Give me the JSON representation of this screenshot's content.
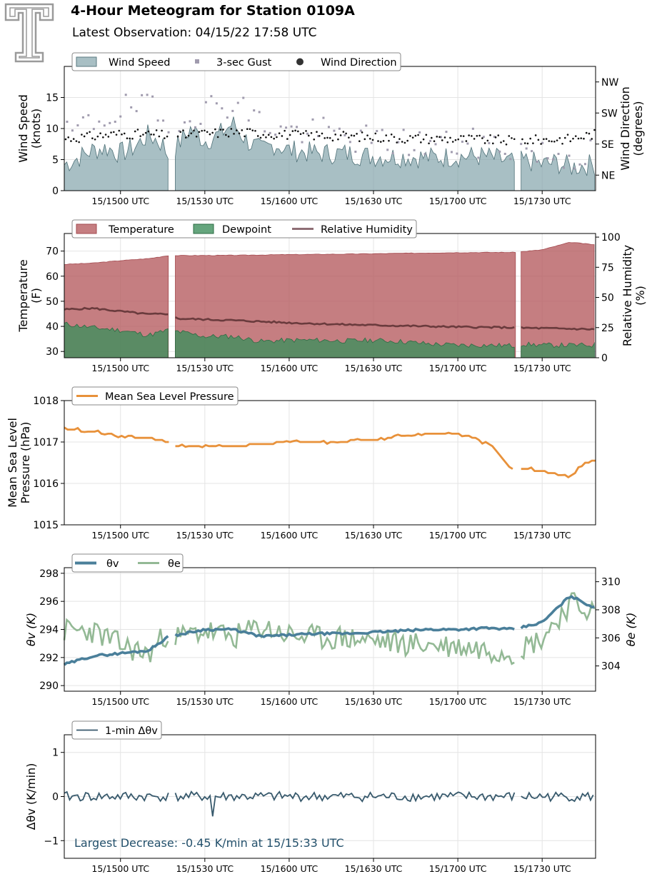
{
  "header": {
    "title": "4-Hour Meteogram for Station 0109A",
    "subtitle": "Latest Observation: 04/15/22 17:58 UTC"
  },
  "colors": {
    "wind_speed": "#7a9ca4",
    "gust": "#a09bae",
    "direction": "#111111",
    "temperature": "#b55a5e",
    "dewpoint": "#3e8e5c",
    "rh": "#6a3b3d",
    "pressure": "#e8913a",
    "theta_v": "#4a7f9a",
    "theta_e": "#93b995",
    "dtheta": "#37596c",
    "annotation": "#23506b"
  },
  "x_ticks": [
    "15/1500 UTC",
    "15/1530 UTC",
    "15/1600 UTC",
    "15/1630 UTC",
    "15/1700 UTC",
    "15/1730 UTC"
  ],
  "chart_data": [
    {
      "type": "area",
      "id": "wind",
      "legend": [
        "Wind Speed",
        "3-sec Gust",
        "Wind Direction"
      ],
      "ylabel": [
        "Wind Speed",
        "(knots)"
      ],
      "ylabel_right": [
        "Wind Direction",
        "(degrees)"
      ],
      "ylim": [
        0,
        20
      ],
      "yticks": [
        0,
        5,
        10,
        15
      ],
      "right_ticks": [
        "NE",
        "SE",
        "SW",
        "NW"
      ],
      "right_tick_values": [
        45,
        135,
        225,
        315
      ],
      "right_lim": [
        0,
        360
      ],
      "x_range_minutes": [
        -20,
        169
      ],
      "gaps": [
        [
          17.5,
          19.5
        ],
        [
          140.5,
          142.5
        ]
      ],
      "wind_speed_anchors": [
        [
          -20,
          4.2
        ],
        [
          -15,
          5.3
        ],
        [
          -10,
          6.5
        ],
        [
          -5,
          6.9
        ],
        [
          0,
          6.0
        ],
        [
          5,
          7.0
        ],
        [
          10,
          9.0
        ],
        [
          15,
          7.5
        ],
        [
          17,
          5.6
        ],
        [
          20,
          7.2
        ],
        [
          25,
          10.0
        ],
        [
          30,
          8.0
        ],
        [
          35,
          9.0
        ],
        [
          40,
          10.8
        ],
        [
          45,
          8.0
        ],
        [
          50,
          6.5
        ],
        [
          55,
          7.5
        ],
        [
          60,
          6.5
        ],
        [
          70,
          6.0
        ],
        [
          80,
          6.0
        ],
        [
          90,
          5.5
        ],
        [
          100,
          5.5
        ],
        [
          110,
          5.3
        ],
        [
          120,
          5.5
        ],
        [
          130,
          5.5
        ],
        [
          140,
          4.5
        ],
        [
          145,
          4.8
        ],
        [
          150,
          4.2
        ],
        [
          155,
          4.5
        ],
        [
          160,
          3.8
        ],
        [
          169,
          4.3
        ]
      ],
      "gust_anchors": [
        [
          -20,
          8.5
        ],
        [
          -10,
          11
        ],
        [
          0,
          13
        ],
        [
          10,
          13.5
        ],
        [
          17,
          9.5
        ],
        [
          20,
          12
        ],
        [
          30,
          13
        ],
        [
          40,
          14.5
        ],
        [
          50,
          11
        ],
        [
          60,
          9.5
        ],
        [
          70,
          9.5
        ],
        [
          90,
          8
        ],
        [
          110,
          7.5
        ],
        [
          120,
          7.5
        ],
        [
          130,
          7.5
        ],
        [
          140,
          7
        ],
        [
          150,
          6
        ],
        [
          160,
          5.5
        ],
        [
          169,
          6.5
        ]
      ],
      "direction_anchors": [
        [
          -20,
          150
        ],
        [
          0,
          165
        ],
        [
          20,
          160
        ],
        [
          40,
          170
        ],
        [
          60,
          162
        ],
        [
          80,
          158
        ],
        [
          100,
          152
        ],
        [
          120,
          150
        ],
        [
          140,
          145
        ],
        [
          160,
          150
        ],
        [
          169,
          165
        ]
      ]
    },
    {
      "type": "area",
      "id": "temp",
      "legend": [
        "Temperature",
        "Dewpoint",
        "Relative Humidity"
      ],
      "ylabel": [
        "Temperature",
        "(F)"
      ],
      "ylabel_right": [
        "Relative Humidity",
        "(%)"
      ],
      "ylim": [
        27.5,
        77
      ],
      "yticks": [
        30,
        40,
        50,
        60,
        70
      ],
      "right_ticks": [
        "0",
        "25",
        "50",
        "75",
        "100"
      ],
      "right_tick_values": [
        0,
        25,
        50,
        75,
        100
      ],
      "right_lim": [
        0,
        103
      ],
      "gaps": [
        [
          17.5,
          19.5
        ],
        [
          140.5,
          142.5
        ]
      ],
      "temperature_anchors": [
        [
          -20,
          64.7
        ],
        [
          -10,
          65.2
        ],
        [
          0,
          66.2
        ],
        [
          10,
          67.0
        ],
        [
          17,
          68.2
        ],
        [
          20,
          68.2
        ],
        [
          40,
          68.3
        ],
        [
          60,
          68.6
        ],
        [
          80,
          68.8
        ],
        [
          100,
          69.1
        ],
        [
          120,
          69.4
        ],
        [
          140,
          69.5
        ],
        [
          142,
          69.7
        ],
        [
          150,
          70.5
        ],
        [
          160,
          73.5
        ],
        [
          169,
          72.5
        ]
      ],
      "dewpoint_anchors": [
        [
          -20,
          41
        ],
        [
          -10,
          39.5
        ],
        [
          0,
          38.5
        ],
        [
          10,
          36.5
        ],
        [
          17,
          38.5
        ],
        [
          20,
          38
        ],
        [
          30,
          36
        ],
        [
          40,
          36
        ],
        [
          50,
          34
        ],
        [
          60,
          34.5
        ],
        [
          70,
          34.5
        ],
        [
          80,
          34.2
        ],
        [
          90,
          34.5
        ],
        [
          100,
          34
        ],
        [
          110,
          33
        ],
        [
          120,
          32.5
        ],
        [
          130,
          32.5
        ],
        [
          140,
          32.3
        ],
        [
          142,
          33
        ],
        [
          150,
          32.5
        ],
        [
          160,
          32.5
        ],
        [
          169,
          32.5
        ]
      ],
      "rh_anchors": [
        [
          -20,
          40
        ],
        [
          -10,
          41
        ],
        [
          0,
          38.5
        ],
        [
          10,
          36
        ],
        [
          17,
          36.5
        ],
        [
          20,
          32.5
        ],
        [
          40,
          31
        ],
        [
          60,
          29
        ],
        [
          80,
          27.5
        ],
        [
          100,
          26.5
        ],
        [
          120,
          25.5
        ],
        [
          140,
          25
        ],
        [
          142,
          24.8
        ],
        [
          160,
          24
        ],
        [
          169,
          23.5
        ]
      ]
    },
    {
      "type": "line",
      "id": "pressure",
      "legend": [
        "Mean Sea Level Pressure"
      ],
      "ylabel": [
        "Mean Sea Level",
        "Pressure (hPa)"
      ],
      "ylim": [
        1015,
        1018
      ],
      "yticks": [
        1015,
        1016,
        1017,
        1018
      ],
      "gaps": [
        [
          17.5,
          19.5
        ],
        [
          140.5,
          142.5
        ]
      ],
      "pressure_anchors": [
        [
          -20,
          1017.33
        ],
        [
          -15,
          1017.28
        ],
        [
          -10,
          1017.25
        ],
        [
          -5,
          1017.2
        ],
        [
          0,
          1017.15
        ],
        [
          10,
          1017.1
        ],
        [
          17,
          1017.0
        ],
        [
          19.5,
          1016.9
        ],
        [
          30,
          1016.88
        ],
        [
          40,
          1016.9
        ],
        [
          50,
          1016.95
        ],
        [
          60,
          1017.0
        ],
        [
          70,
          1017.0
        ],
        [
          80,
          1017.02
        ],
        [
          90,
          1017.05
        ],
        [
          100,
          1017.15
        ],
        [
          110,
          1017.2
        ],
        [
          120,
          1017.2
        ],
        [
          128,
          1017.05
        ],
        [
          132,
          1016.9
        ],
        [
          137,
          1016.5
        ],
        [
          140,
          1016.3
        ],
        [
          143,
          1016.35
        ],
        [
          150,
          1016.3
        ],
        [
          160,
          1016.15
        ],
        [
          165,
          1016.5
        ],
        [
          169,
          1016.55
        ]
      ]
    },
    {
      "type": "line",
      "id": "theta",
      "legend": [
        "θv",
        "θe"
      ],
      "ylabel": [
        "θv (K)"
      ],
      "ylabel_right": [
        "θe (K)"
      ],
      "ylim": [
        289.6,
        298.4
      ],
      "yticks": [
        290,
        292,
        294,
        296,
        298
      ],
      "right_ticks": [
        "304",
        "306",
        "308",
        "310"
      ],
      "right_tick_values": [
        304,
        306,
        308,
        310
      ],
      "right_lim": [
        302.2,
        311
      ],
      "gaps": [
        [
          17.5,
          19.5
        ],
        [
          140.5,
          142.5
        ]
      ],
      "theta_v_anchors": [
        [
          -20,
          291.5
        ],
        [
          -10,
          292.1
        ],
        [
          0,
          292.3
        ],
        [
          10,
          292.5
        ],
        [
          17,
          293.5
        ],
        [
          20,
          293.6
        ],
        [
          30,
          294.0
        ],
        [
          40,
          294.0
        ],
        [
          50,
          293.5
        ],
        [
          60,
          293.6
        ],
        [
          70,
          293.7
        ],
        [
          80,
          293.7
        ],
        [
          90,
          293.8
        ],
        [
          100,
          293.9
        ],
        [
          110,
          294.0
        ],
        [
          120,
          294.0
        ],
        [
          130,
          294.1
        ],
        [
          140,
          294.0
        ],
        [
          142,
          294.1
        ],
        [
          150,
          294.5
        ],
        [
          160,
          296.4
        ],
        [
          169,
          295.5
        ]
      ],
      "theta_e_anchors": [
        [
          -20,
          306.5
        ],
        [
          -10,
          306.5
        ],
        [
          0,
          305.5
        ],
        [
          10,
          304.8
        ],
        [
          17,
          306.5
        ],
        [
          20,
          306.0
        ],
        [
          30,
          306.5
        ],
        [
          40,
          306.0
        ],
        [
          50,
          306.8
        ],
        [
          60,
          306.2
        ],
        [
          70,
          306.0
        ],
        [
          80,
          306.0
        ],
        [
          90,
          305.8
        ],
        [
          100,
          305.6
        ],
        [
          110,
          305.5
        ],
        [
          120,
          305.4
        ],
        [
          130,
          305.2
        ],
        [
          140,
          305.0
        ],
        [
          142,
          305.2
        ],
        [
          150,
          306.0
        ],
        [
          160,
          308.5
        ],
        [
          169,
          307.8
        ]
      ]
    },
    {
      "type": "line",
      "id": "dtheta",
      "legend": [
        "1-min Δθv"
      ],
      "ylabel": [
        "Δθv (K/min)"
      ],
      "ylim": [
        -1.4,
        1.4
      ],
      "yticks": [
        -1,
        0,
        1
      ],
      "gaps": [
        [
          17.5,
          19.5
        ],
        [
          140.5,
          142.5
        ]
      ],
      "annotation": "Largest Decrease: -0.45 K/min at 15/15:33 UTC",
      "min_point": [
        -45,
        33
      ]
    }
  ]
}
